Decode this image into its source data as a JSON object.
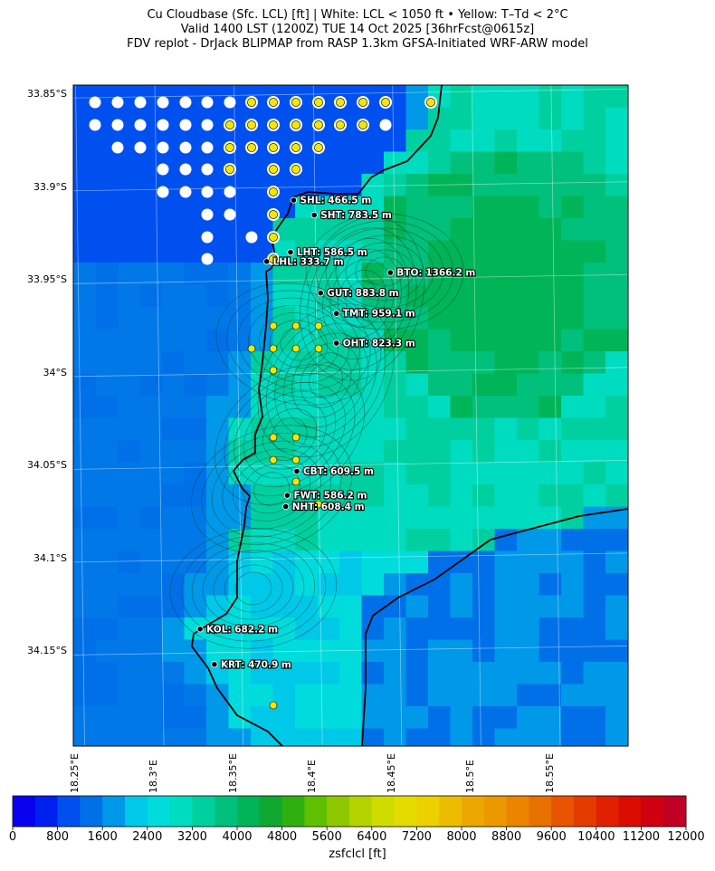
{
  "header": {
    "line1": "Cu Cloudbase (Sfc. LCL) [ft]  |  White: LCL < 1050 ft • Yellow: T–Td < 2°C",
    "line2": "Valid 1400 LST (1200Z) TUE 14 Oct 2025 [36hrFcst@0615z]",
    "line3": "FDV replot - DrJack BLIPMAP from RASP 1.3km GFSA-Initiated WRF-ARW model"
  },
  "axes": {
    "lat_ticks": [
      {
        "value": -33.85,
        "label": "33.85°S"
      },
      {
        "value": -33.9,
        "label": "33.9°S"
      },
      {
        "value": -33.95,
        "label": "33.95°S"
      },
      {
        "value": -34.0,
        "label": "34°S"
      },
      {
        "value": -34.05,
        "label": "34.05°S"
      },
      {
        "value": -34.1,
        "label": "34.1°S"
      },
      {
        "value": -34.15,
        "label": "34.15°S"
      }
    ],
    "lon_ticks": [
      {
        "value": 18.25,
        "label": "18.25°E"
      },
      {
        "value": 18.3,
        "label": "18.3°E"
      },
      {
        "value": 18.35,
        "label": "18.35°E"
      },
      {
        "value": 18.4,
        "label": "18.4°E"
      },
      {
        "value": 18.45,
        "label": "18.45°E"
      },
      {
        "value": 18.5,
        "label": "18.5°E"
      },
      {
        "value": 18.55,
        "label": "18.55°E"
      }
    ],
    "lon_range": [
      18.244,
      18.594
    ],
    "lat_range": [
      -34.201,
      -33.845
    ]
  },
  "colorbar": {
    "title": "zsfclcl [ft]",
    "min": 0,
    "max": 12000,
    "step": 400,
    "colors": [
      "#0a00f0",
      "#0020f0",
      "#0050f0",
      "#0070e8",
      "#0098e8",
      "#00c8e8",
      "#00dcdc",
      "#00dcc0",
      "#00d0a0",
      "#00c07c",
      "#00b458",
      "#10a830",
      "#30b010",
      "#60c000",
      "#90c800",
      "#b4d400",
      "#d0dc00",
      "#e4dc00",
      "#ecd000",
      "#ecbc00",
      "#eca800",
      "#ec9800",
      "#ec8400",
      "#e87000",
      "#e85400",
      "#e43c00",
      "#e02000",
      "#d80c00",
      "#d00010",
      "#c00024"
    ],
    "labels": [
      "0",
      "800",
      "1600",
      "2400",
      "3200",
      "4000",
      "4800",
      "5600",
      "6400",
      "7200",
      "8000",
      "8800",
      "9600",
      "10400",
      "11200",
      "12000"
    ]
  },
  "stations": [
    {
      "code": "SHL",
      "label": "SHL: 466.5 m",
      "lon": 18.383,
      "lat": -33.907
    },
    {
      "code": "SHT",
      "label": "SHT: 783.5 m",
      "lon": 18.396,
      "lat": -33.915
    },
    {
      "code": "LHT",
      "label": "LHT: 586.5 m",
      "lon": 18.381,
      "lat": -33.935
    },
    {
      "code": "LHL",
      "label": "LHL: 333.7 m",
      "lon": 18.366,
      "lat": -33.94
    },
    {
      "code": "BTO",
      "label": "BTO: 1366.2 m",
      "lon": 18.444,
      "lat": -33.946
    },
    {
      "code": "GUT",
      "label": "GUT: 883.8 m",
      "lon": 18.4,
      "lat": -33.957
    },
    {
      "code": "TMT",
      "label": "TMT: 959.1 m",
      "lon": 18.41,
      "lat": -33.968
    },
    {
      "code": "OHT",
      "label": "OHT: 823.3 m",
      "lon": 18.41,
      "lat": -33.984
    },
    {
      "code": "CBT",
      "label": "CBT: 609.5 m",
      "lon": 18.385,
      "lat": -34.053
    },
    {
      "code": "FWT",
      "label": "FWT: 586.2 m",
      "lon": 18.379,
      "lat": -34.066
    },
    {
      "code": "NHT",
      "label": "NHT: 608.4 m",
      "lon": 18.378,
      "lat": -34.072
    },
    {
      "code": "KOL",
      "label": "KOL: 682.2 m",
      "lon": 18.324,
      "lat": -34.138
    },
    {
      "code": "KRT",
      "label": "KRT: 470.9 m",
      "lon": 18.333,
      "lat": -34.157
    }
  ]
}
